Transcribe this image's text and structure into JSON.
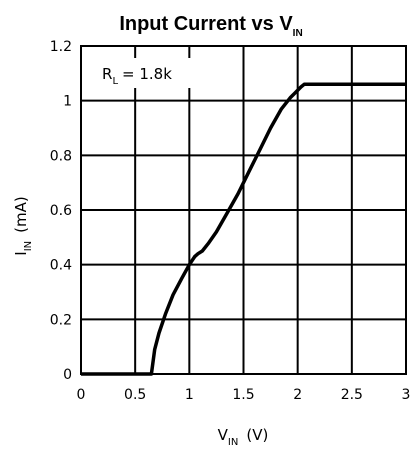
{
  "chart_data": {
    "type": "line",
    "title": {
      "main": "Input Current vs V",
      "sub": "IN"
    },
    "xlabel": {
      "main": "V",
      "sub": "IN",
      "unit": "(V)"
    },
    "ylabel": {
      "main": "I",
      "sub": "IN",
      "unit": "(mA)"
    },
    "annotation": {
      "main": "R",
      "sub": "L",
      "value": "= 1.8k"
    },
    "xlim": [
      0,
      3
    ],
    "ylim": [
      0,
      1.2
    ],
    "x_ticks": [
      "0",
      "0.5",
      "1",
      "1.5",
      "2",
      "2.5",
      "3"
    ],
    "y_ticks": [
      "0",
      "0.2",
      "0.4",
      "0.6",
      "0.8",
      "1",
      "1.2"
    ],
    "grid": true,
    "series": [
      {
        "x": [
          0,
          0.65,
          0.68,
          0.72,
          0.78,
          0.85,
          0.93,
          1.0,
          1.05,
          1.08,
          1.12,
          1.18,
          1.25,
          1.35,
          1.45,
          1.55,
          1.65,
          1.75,
          1.85,
          1.93,
          1.98,
          2.03,
          2.06,
          3.0
        ],
        "y": [
          0,
          0,
          0.09,
          0.15,
          0.22,
          0.29,
          0.35,
          0.4,
          0.43,
          0.44,
          0.45,
          0.48,
          0.52,
          0.59,
          0.66,
          0.74,
          0.82,
          0.9,
          0.97,
          1.01,
          1.03,
          1.05,
          1.06,
          1.06
        ]
      }
    ]
  }
}
